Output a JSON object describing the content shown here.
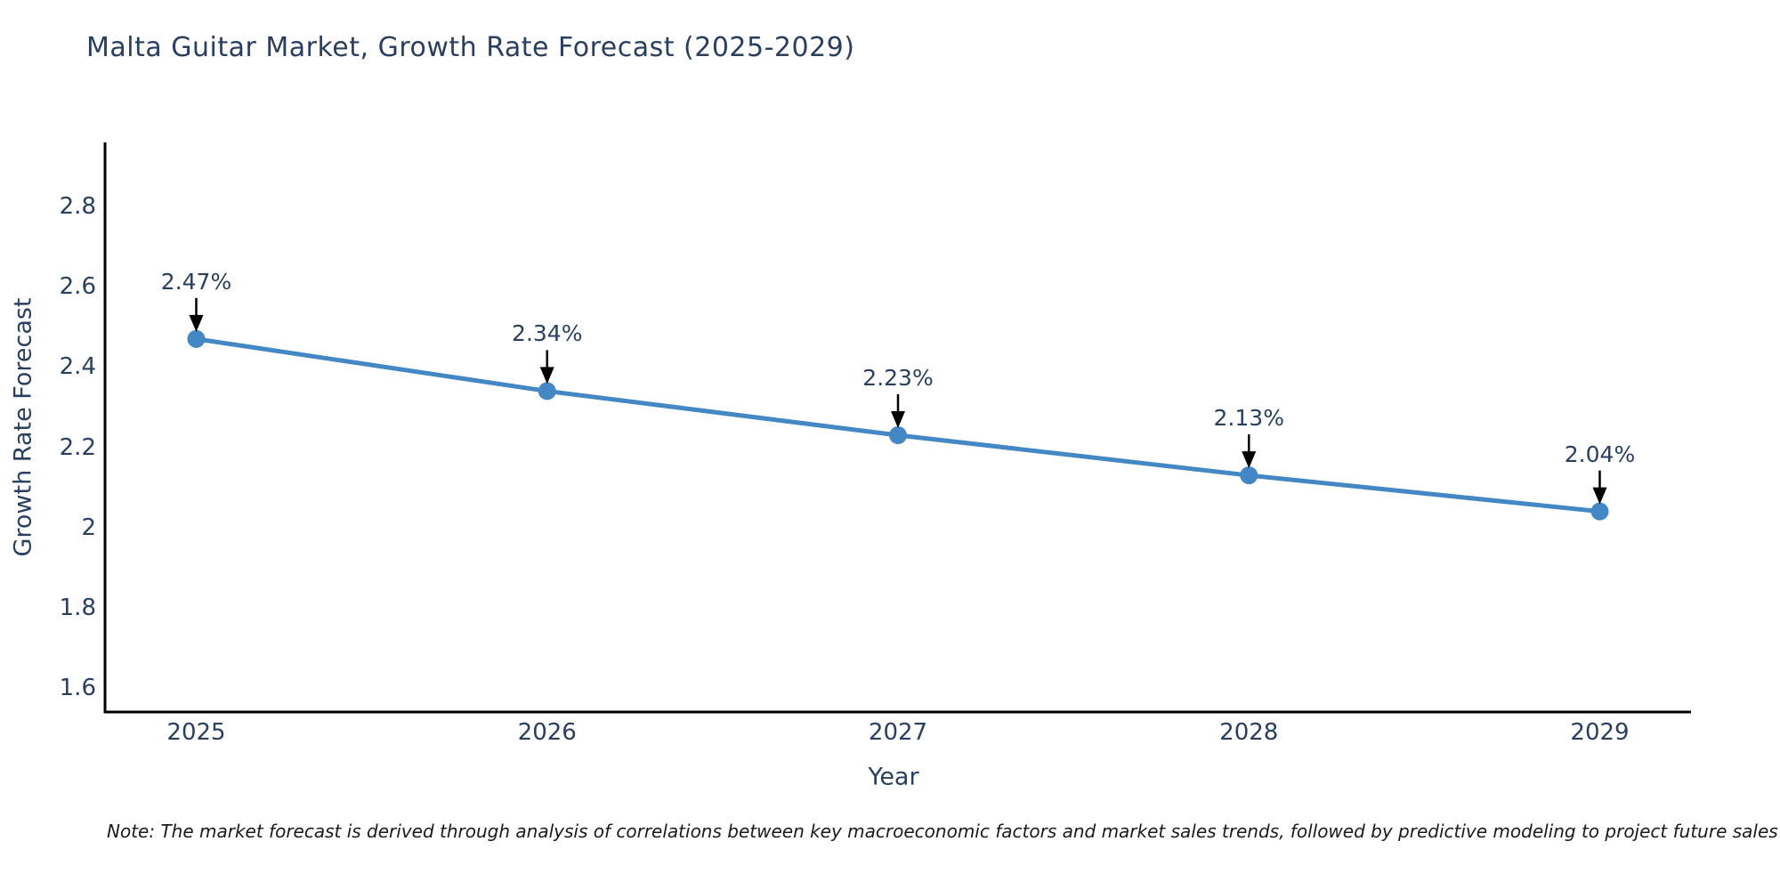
{
  "title": "Malta Guitar Market, Growth Rate Forecast (2025-2029)",
  "note": "Note: The market forecast is derived through analysis of correlations between key macroeconomic factors and market sales trends, followed by predictive modeling to project future sales",
  "chart_data": {
    "type": "line",
    "title": "Malta Guitar Market, Growth Rate Forecast (2025-2029)",
    "xlabel": "Year",
    "ylabel": "Growth Rate Forecast",
    "x": [
      2025,
      2026,
      2027,
      2028,
      2029
    ],
    "y": [
      2.47,
      2.34,
      2.23,
      2.13,
      2.04
    ],
    "point_labels": [
      "2.47%",
      "2.34%",
      "2.23%",
      "2.13%",
      "2.04%"
    ],
    "x_ticks": [
      "2025",
      "2026",
      "2027",
      "2028",
      "2029"
    ],
    "y_ticks": [
      "2.8",
      "2.6",
      "2.4",
      "2.2",
      "2",
      "1.8",
      "1.6"
    ],
    "xlim": [
      2024.74,
      2029.26
    ],
    "ylim": [
      1.54,
      2.96
    ],
    "grid": false,
    "legend": false,
    "line_color": "#4487c5",
    "marker_color": "#4487c5",
    "axis_color": "#000000",
    "text_color": "#2a3f5f",
    "annotation_arrow_color": "#000000"
  }
}
